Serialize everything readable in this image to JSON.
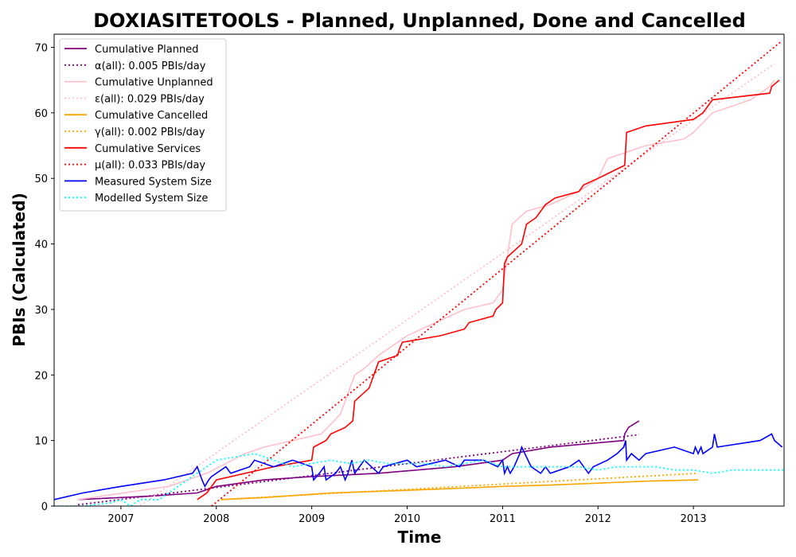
{
  "chart_data": {
    "type": "line",
    "title": "DOXIASITETOOLS - Planned, Unplanned, Done  and Cancelled",
    "xlabel": "Time",
    "ylabel": "PBIs (Calculated)",
    "xlim": [
      2006.3,
      2013.95
    ],
    "ylim": [
      0,
      72
    ],
    "x_ticks": [
      "2007",
      "2008",
      "2009",
      "2010",
      "2011",
      "2012",
      "2013"
    ],
    "y_ticks": [
      0,
      10,
      20,
      30,
      40,
      50,
      60,
      70
    ],
    "legend_position": "top-left",
    "grid": false,
    "series": [
      {
        "name": "Cumulative Planned",
        "color": "#800080",
        "style": "solid",
        "x": [
          2006.55,
          2007.3,
          2007.8,
          2008.0,
          2008.5,
          2009.0,
          2009.7,
          2010.5,
          2011.0,
          2011.1,
          2011.5,
          2012.27,
          2012.28,
          2012.32,
          2012.43
        ],
        "y": [
          1,
          1.5,
          2,
          3,
          4,
          4.5,
          5,
          6,
          7,
          8,
          9,
          10,
          11,
          12,
          13
        ]
      },
      {
        "name": "α(all): 0.005 PBIs/day",
        "color": "#800080",
        "style": "dotted",
        "x": [
          2006.55,
          2012.43
        ],
        "y": [
          0.2,
          10.9
        ]
      },
      {
        "name": "Cumulative Unplanned",
        "color": "#ffc0cb",
        "style": "solid",
        "x": [
          2006.55,
          2007.5,
          2007.9,
          2008.3,
          2008.5,
          2009.1,
          2009.3,
          2009.45,
          2009.55,
          2009.7,
          2010.0,
          2010.3,
          2010.6,
          2010.9,
          2011.0,
          2011.1,
          2011.25,
          2011.5,
          2011.8,
          2012.0,
          2012.1,
          2012.3,
          2012.5,
          2012.9,
          2013.0,
          2013.2,
          2013.6,
          2013.8,
          2013.85
        ],
        "y": [
          1,
          3,
          5,
          8,
          9,
          11,
          14,
          20,
          21,
          23,
          26,
          28,
          30,
          31,
          33,
          43,
          45,
          46,
          48,
          50,
          53,
          54,
          55,
          56,
          57,
          60,
          62,
          64,
          65
        ]
      },
      {
        "name": "ε(all): 0.029 PBIs/day",
        "color": "#ffc0cb",
        "style": "dotted",
        "x": [
          2007.0,
          2013.85
        ],
        "y": [
          -2,
          67.5
        ]
      },
      {
        "name": "Cumulative Cancelled",
        "color": "#ffa500",
        "style": "solid",
        "x": [
          2008.05,
          2008.5,
          2009.0,
          2009.2,
          2010.0,
          2010.5,
          2011.0,
          2011.5,
          2012.0,
          2012.5,
          2013.05
        ],
        "y": [
          1,
          1.3,
          1.8,
          2,
          2.4,
          2.7,
          3,
          3.2,
          3.5,
          3.8,
          4
        ]
      },
      {
        "name": "γ(all): 0.002 PBIs/day",
        "color": "#ffa500",
        "style": "dotted",
        "x": [
          2008.05,
          2013.05
        ],
        "y": [
          1.0,
          5.0
        ]
      },
      {
        "name": "Cumulative Services",
        "color": "#ff0000",
        "style": "solid",
        "x": [
          2007.8,
          2007.9,
          2008.0,
          2008.6,
          2009.0,
          2009.02,
          2009.15,
          2009.2,
          2009.35,
          2009.43,
          2009.45,
          2009.6,
          2009.65,
          2009.7,
          2009.9,
          2009.92,
          2009.95,
          2010.35,
          2010.6,
          2010.65,
          2010.9,
          2010.93,
          2011.0,
          2011.02,
          2011.05,
          2011.2,
          2011.25,
          2011.35,
          2011.4,
          2011.45,
          2011.55,
          2011.8,
          2011.85,
          2012.0,
          2012.28,
          2012.3,
          2012.5,
          2013.0,
          2013.1,
          2013.15,
          2013.2,
          2013.8,
          2013.82,
          2013.9
        ],
        "y": [
          1,
          2,
          4,
          6,
          7,
          9,
          10,
          11,
          12,
          13,
          16,
          18,
          20,
          22,
          23,
          24,
          25,
          26,
          27,
          28,
          29,
          30,
          31,
          37,
          38,
          40,
          43,
          44,
          45,
          46,
          47,
          48,
          49,
          50,
          52,
          57,
          58,
          59,
          60,
          61,
          62,
          63,
          64,
          65
        ]
      },
      {
        "name": "μ(all): 0.033 PBIs/day",
        "color": "#ff0000",
        "style": "dotted",
        "x": [
          2007.95,
          2013.93
        ],
        "y": [
          0,
          71
        ]
      },
      {
        "name": "Measured System Size",
        "color": "#0000ff",
        "style": "solid",
        "x": [
          2006.3,
          2006.6,
          2007.0,
          2007.45,
          2007.75,
          2007.8,
          2007.85,
          2007.88,
          2007.92,
          2007.95,
          2008.1,
          2008.15,
          2008.35,
          2008.4,
          2008.6,
          2008.8,
          2009.0,
          2009.02,
          2009.08,
          2009.13,
          2009.15,
          2009.25,
          2009.3,
          2009.35,
          2009.38,
          2009.42,
          2009.45,
          2009.5,
          2009.55,
          2009.7,
          2009.75,
          2010.0,
          2010.1,
          2010.4,
          2010.55,
          2010.6,
          2010.8,
          2010.95,
          2011.0,
          2011.02,
          2011.05,
          2011.08,
          2011.12,
          2011.15,
          2011.18,
          2011.2,
          2011.3,
          2011.4,
          2011.45,
          2011.5,
          2011.7,
          2011.8,
          2011.9,
          2011.95,
          2012.1,
          2012.2,
          2012.27,
          2012.29,
          2012.3,
          2012.35,
          2012.43,
          2012.5,
          2012.8,
          2013.0,
          2013.02,
          2013.05,
          2013.08,
          2013.1,
          2013.2,
          2013.22,
          2013.25,
          2013.7,
          2013.82,
          2013.85,
          2013.93
        ],
        "y": [
          1,
          2,
          3,
          4,
          5,
          6,
          4,
          3,
          4,
          4.5,
          6,
          5,
          6,
          7,
          6,
          7,
          6,
          4,
          5,
          6,
          4,
          5,
          6,
          4,
          5,
          7,
          5,
          6,
          7,
          5,
          6,
          7,
          6,
          7,
          6,
          7,
          7,
          6,
          7,
          5,
          6,
          5,
          6,
          7,
          8,
          9,
          6,
          5,
          6,
          5,
          6,
          7,
          5,
          6,
          7,
          8,
          9,
          10,
          7,
          8,
          7,
          8,
          9,
          8,
          9,
          8,
          9,
          8,
          9,
          11,
          9,
          10,
          11,
          10,
          9
        ]
      },
      {
        "name": "Modelled System Size",
        "color": "#00ffff",
        "style": "dotted",
        "x": [
          2006.3,
          2006.6,
          2006.9,
          2007.0,
          2007.1,
          2007.2,
          2007.4,
          2007.6,
          2007.8,
          2008.0,
          2008.2,
          2008.4,
          2008.6,
          2008.8,
          2009.0,
          2009.2,
          2009.4,
          2009.6,
          2009.8,
          2010.0,
          2010.2,
          2010.4,
          2010.6,
          2010.8,
          2011.0,
          2011.2,
          2011.4,
          2011.6,
          2011.8,
          2012.0,
          2012.2,
          2012.4,
          2012.6,
          2012.8,
          2013.0,
          2013.2,
          2013.4,
          2013.6,
          2013.8,
          2013.95
        ],
        "y": [
          0,
          0,
          0.5,
          1,
          0,
          1,
          1,
          3,
          5,
          7,
          7.5,
          8,
          7,
          6,
          6.5,
          7,
          6.5,
          7,
          6.5,
          6.5,
          6.5,
          6,
          6.5,
          7,
          6,
          6,
          6,
          6,
          6,
          5.5,
          6,
          6,
          6,
          5.5,
          5.5,
          5,
          5.5,
          5.5,
          5.5,
          5.5
        ]
      }
    ]
  }
}
